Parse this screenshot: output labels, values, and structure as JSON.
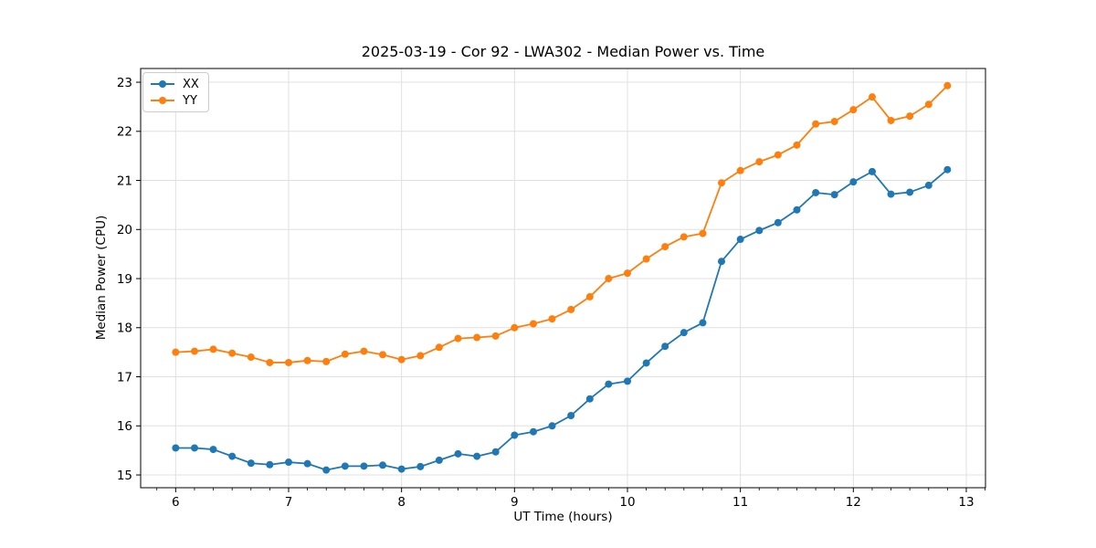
{
  "chart_data": {
    "type": "line",
    "title": "2025-03-19 - Cor 92 - LWA302 - Median Power vs. Time",
    "xlabel": "UT Time (hours)",
    "ylabel": "Median Power (CPU)",
    "xlim": [
      5.69,
      13.17
    ],
    "ylim": [
      14.74,
      23.28
    ],
    "xticks": [
      6,
      7,
      8,
      9,
      10,
      11,
      12,
      13
    ],
    "yticks": [
      15,
      16,
      17,
      18,
      19,
      20,
      21,
      22,
      23
    ],
    "x_minor_interval": 0.1667,
    "grid": true,
    "legend_position": "upper-left",
    "grid_color": "#e0e0e0",
    "x": [
      6.0,
      6.167,
      6.333,
      6.5,
      6.667,
      6.833,
      7.0,
      7.167,
      7.333,
      7.5,
      7.667,
      7.833,
      8.0,
      8.167,
      8.333,
      8.5,
      8.667,
      8.833,
      9.0,
      9.167,
      9.333,
      9.5,
      9.667,
      9.833,
      10.0,
      10.167,
      10.333,
      10.5,
      10.667,
      10.833,
      11.0,
      11.167,
      11.333,
      11.5,
      11.667,
      11.833,
      12.0,
      12.167,
      12.333,
      12.5,
      12.667,
      12.833
    ],
    "series": [
      {
        "name": "XX",
        "color": "#1f77b4",
        "values": [
          15.55,
          15.55,
          15.52,
          15.38,
          15.24,
          15.21,
          15.26,
          15.23,
          15.1,
          15.18,
          15.18,
          15.2,
          15.12,
          15.17,
          15.3,
          15.43,
          15.38,
          15.47,
          15.81,
          15.88,
          16.0,
          16.21,
          16.55,
          16.85,
          16.91,
          17.28,
          17.62,
          17.9,
          18.1,
          19.35,
          19.8,
          19.98,
          20.14,
          20.4,
          20.75,
          20.71,
          20.97,
          21.18,
          20.72,
          20.76,
          20.9,
          21.22
        ]
      },
      {
        "name": "YY",
        "color": "#ff7f0e",
        "values": [
          17.5,
          17.52,
          17.56,
          17.48,
          17.4,
          17.29,
          17.29,
          17.33,
          17.31,
          17.46,
          17.52,
          17.45,
          17.35,
          17.43,
          17.6,
          17.78,
          17.8,
          17.83,
          18.0,
          18.08,
          18.18,
          18.37,
          18.63,
          19.0,
          19.11,
          19.4,
          19.65,
          19.85,
          19.92,
          20.95,
          21.2,
          21.38,
          21.52,
          21.72,
          22.15,
          22.2,
          22.44,
          22.7,
          22.22,
          22.31,
          22.55,
          22.93
        ]
      }
    ]
  }
}
